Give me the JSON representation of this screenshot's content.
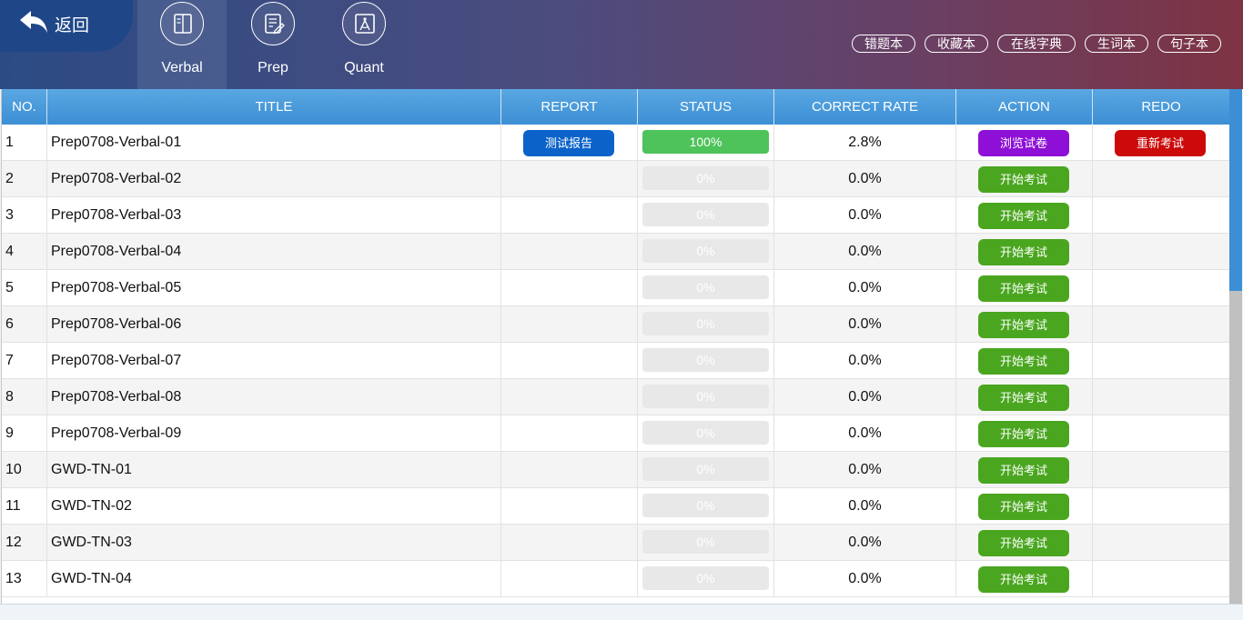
{
  "header": {
    "back_label": "返回",
    "nav": [
      {
        "label": "Verbal",
        "icon": "book-icon",
        "active": true
      },
      {
        "label": "Prep",
        "icon": "edit-note-icon",
        "active": false
      },
      {
        "label": "Quant",
        "icon": "compass-icon",
        "active": false
      }
    ],
    "tools": [
      "错题本",
      "收藏本",
      "在线字典",
      "生词本",
      "句子本"
    ]
  },
  "table": {
    "columns": [
      "NO.",
      "TITLE",
      "REPORT",
      "STATUS",
      "CORRECT RATE",
      "ACTION",
      "REDO"
    ],
    "rows": [
      {
        "no": "1",
        "title": "Prep0708-Verbal-01",
        "report": "测试报告",
        "status": "100%",
        "progress": 1.0,
        "rate": "2.8%",
        "action": "浏览试卷",
        "action_color": "#8e10d6",
        "redo": "重新考试"
      },
      {
        "no": "2",
        "title": "Prep0708-Verbal-02",
        "report": "",
        "status": "0%",
        "progress": 0,
        "rate": "0.0%",
        "action": "开始考试",
        "action_color": "#4aa61f",
        "redo": ""
      },
      {
        "no": "3",
        "title": "Prep0708-Verbal-03",
        "report": "",
        "status": "0%",
        "progress": 0,
        "rate": "0.0%",
        "action": "开始考试",
        "action_color": "#4aa61f",
        "redo": ""
      },
      {
        "no": "4",
        "title": "Prep0708-Verbal-04",
        "report": "",
        "status": "0%",
        "progress": 0,
        "rate": "0.0%",
        "action": "开始考试",
        "action_color": "#4aa61f",
        "redo": ""
      },
      {
        "no": "5",
        "title": "Prep0708-Verbal-05",
        "report": "",
        "status": "0%",
        "progress": 0,
        "rate": "0.0%",
        "action": "开始考试",
        "action_color": "#4aa61f",
        "redo": ""
      },
      {
        "no": "6",
        "title": "Prep0708-Verbal-06",
        "report": "",
        "status": "0%",
        "progress": 0,
        "rate": "0.0%",
        "action": "开始考试",
        "action_color": "#4aa61f",
        "redo": ""
      },
      {
        "no": "7",
        "title": "Prep0708-Verbal-07",
        "report": "",
        "status": "0%",
        "progress": 0,
        "rate": "0.0%",
        "action": "开始考试",
        "action_color": "#4aa61f",
        "redo": ""
      },
      {
        "no": "8",
        "title": "Prep0708-Verbal-08",
        "report": "",
        "status": "0%",
        "progress": 0,
        "rate": "0.0%",
        "action": "开始考试",
        "action_color": "#4aa61f",
        "redo": ""
      },
      {
        "no": "9",
        "title": "Prep0708-Verbal-09",
        "report": "",
        "status": "0%",
        "progress": 0,
        "rate": "0.0%",
        "action": "开始考试",
        "action_color": "#4aa61f",
        "redo": ""
      },
      {
        "no": "10",
        "title": "GWD-TN-01",
        "report": "",
        "status": "0%",
        "progress": 0,
        "rate": "0.0%",
        "action": "开始考试",
        "action_color": "#4aa61f",
        "redo": ""
      },
      {
        "no": "11",
        "title": "GWD-TN-02",
        "report": "",
        "status": "0%",
        "progress": 0,
        "rate": "0.0%",
        "action": "开始考试",
        "action_color": "#4aa61f",
        "redo": ""
      },
      {
        "no": "12",
        "title": "GWD-TN-03",
        "report": "",
        "status": "0%",
        "progress": 0,
        "rate": "0.0%",
        "action": "开始考试",
        "action_color": "#4aa61f",
        "redo": ""
      },
      {
        "no": "13",
        "title": "GWD-TN-04",
        "report": "",
        "status": "0%",
        "progress": 0,
        "rate": "0.0%",
        "action": "开始考试",
        "action_color": "#4aa61f",
        "redo": ""
      }
    ]
  },
  "colors": {
    "header_gradient_start": "#2c4b85",
    "header_gradient_end": "#7e3443",
    "table_header": "#4a9bdb",
    "report_button": "#0b63c9",
    "start_button": "#4aa61f",
    "browse_button": "#8e10d6",
    "redo_button": "#cc0a0a",
    "progress_done": "#4dc35a"
  },
  "scroll_position": 0.0
}
